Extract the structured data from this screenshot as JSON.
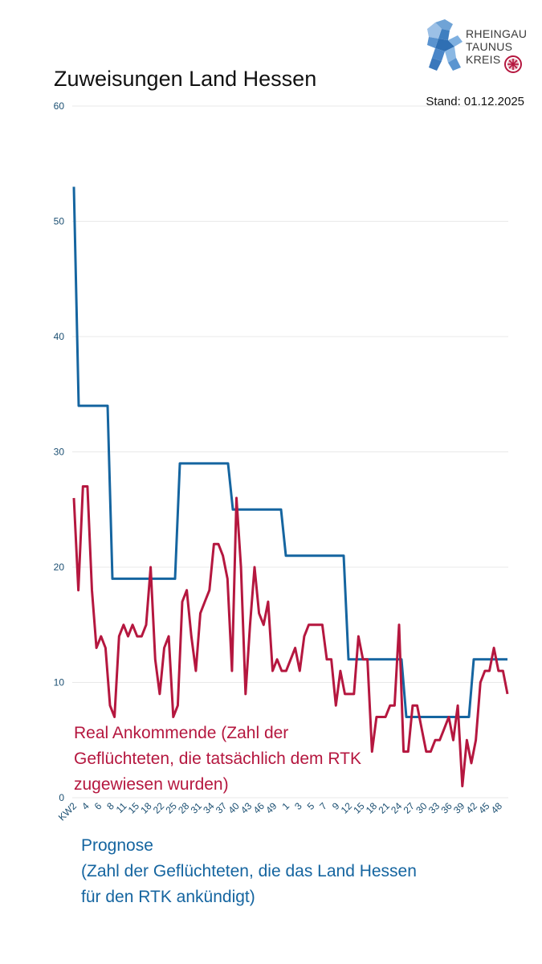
{
  "chart_data": {
    "type": "line",
    "title": "Zuweisungen Land Hessen",
    "subtitle": "Stand: 01.12.2025",
    "ylim": [
      0,
      60
    ],
    "yticks": [
      0,
      10,
      20,
      30,
      40,
      50,
      60
    ],
    "grid": true,
    "x_tick_labels": [
      "KW2",
      "4",
      "6",
      "8",
      "11",
      "15",
      "18",
      "22",
      "25",
      "28",
      "31",
      "34",
      "37",
      "40",
      "43",
      "46",
      "49",
      "1",
      "3",
      "5",
      "7",
      "9",
      "12",
      "15",
      "18",
      "21",
      "24",
      "27",
      "30",
      "33",
      "36",
      "39",
      "42",
      "45",
      "48"
    ],
    "series": [
      {
        "name": "Prognose",
        "label": "Prognose\n(Zahl der Geflüchteten, die das Land Hessen für den RTK ankündigt)",
        "color": "#1565a0",
        "values": [
          53,
          34,
          34,
          34,
          34,
          34,
          34,
          34,
          19,
          19,
          19,
          19,
          19,
          19,
          19,
          19,
          19,
          19,
          19,
          19,
          19,
          19,
          29,
          29,
          29,
          29,
          29,
          29,
          29,
          29,
          29,
          29,
          29,
          25,
          25,
          25,
          25,
          25,
          25,
          25,
          25,
          25,
          25,
          25,
          21,
          21,
          21,
          21,
          21,
          21,
          21,
          21,
          21,
          21,
          21,
          21,
          21,
          12,
          12,
          12,
          12,
          12,
          12,
          12,
          12,
          12,
          12,
          12,
          12,
          7,
          7,
          7,
          7,
          7,
          7,
          7,
          7,
          7,
          7,
          7,
          7,
          7,
          7,
          12,
          12,
          12,
          12,
          12,
          12,
          12,
          12
        ]
      },
      {
        "name": "Real Ankommende",
        "label": "Real Ankommende (Zahl der Geflüchteten, die tatsächlich dem RTK zugewiesen wurden)",
        "color": "#b5173f",
        "values": [
          26,
          18,
          27,
          27,
          18,
          13,
          14,
          13,
          8,
          7,
          14,
          15,
          14,
          15,
          14,
          14,
          15,
          20,
          12,
          9,
          13,
          14,
          7,
          8,
          17,
          18,
          14,
          11,
          16,
          17,
          18,
          22,
          22,
          21,
          19,
          11,
          26,
          20,
          9,
          15,
          20,
          16,
          15,
          17,
          11,
          12,
          11,
          11,
          12,
          13,
          11,
          14,
          15,
          15,
          15,
          15,
          12,
          12,
          8,
          11,
          9,
          9,
          9,
          14,
          12,
          12,
          4,
          7,
          7,
          7,
          8,
          8,
          15,
          4,
          4,
          8,
          8,
          6,
          4,
          4,
          5,
          5,
          6,
          7,
          5,
          8,
          1,
          5,
          3,
          5,
          10,
          11,
          11,
          13,
          11,
          11,
          9
        ]
      }
    ]
  },
  "logo": {
    "line1": "RHEINGAU",
    "line2": "TAUNUS",
    "line3": "KREIS"
  }
}
